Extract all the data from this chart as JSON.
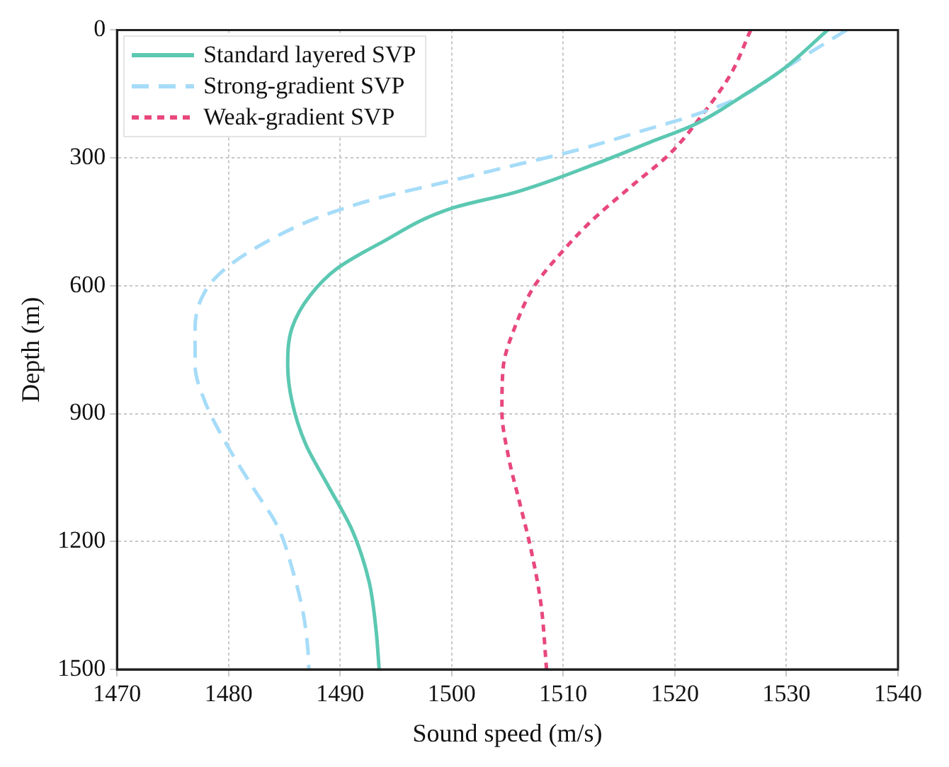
{
  "chart_data": {
    "type": "line",
    "xlabel": "Sound speed (m/s)",
    "ylabel": "Depth (m)",
    "xlim": [
      1470,
      1540
    ],
    "xticks": [
      1470,
      1480,
      1490,
      1500,
      1510,
      1520,
      1530,
      1540
    ],
    "ylim": [
      1500,
      0
    ],
    "yticks": [
      0,
      300,
      600,
      900,
      1200,
      1500
    ],
    "grid": true,
    "legend": "top left",
    "marker": "none",
    "series": [
      {
        "name": "Standard layered SVP",
        "color": "#5cc8b2",
        "line_style": "solid",
        "x": [
          1533.7,
          1529.6,
          1526.6,
          1521.6,
          1517.8,
          1512.8,
          1505.8,
          1499.9,
          1493.6,
          1489.8,
          1487.3,
          1485.7,
          1485.3,
          1485.7,
          1486.9,
          1488.9,
          1491.1,
          1492.6,
          1493.2,
          1493.5
        ],
        "values": [
          0,
          94,
          146,
          224,
          263,
          315,
          380,
          419,
          500,
          558,
          623,
          698,
          786,
          873,
          971,
          1068,
          1175,
          1295,
          1403,
          1500
        ]
      },
      {
        "name": "Strong-gradient SVP",
        "color": "#a6dcf8",
        "line_style": "dashed",
        "x": [
          1535.4,
          1529.6,
          1526.2,
          1521.6,
          1517.4,
          1511.2,
          1505.5,
          1499.9,
          1493.2,
          1488.2,
          1483.6,
          1479.8,
          1477.9,
          1477.0,
          1477.0,
          1477.9,
          1479.8,
          1482.3,
          1484.4,
          1485.8,
          1486.7,
          1487.1,
          1487.2
        ],
        "values": [
          0,
          94,
          153,
          201,
          234,
          282,
          318,
          354,
          396,
          438,
          494,
          558,
          613,
          698,
          786,
          873,
          971,
          1078,
          1165,
          1273,
          1370,
          1451,
          1500
        ]
      },
      {
        "name": "Weak-gradient SVP",
        "color": "#e8487c",
        "line_style": "dotted",
        "x": [
          1526.8,
          1525.0,
          1522.4,
          1519.6,
          1515.8,
          1512.4,
          1509.5,
          1507.4,
          1505.8,
          1504.6,
          1504.5,
          1505.1,
          1506.1,
          1507.1,
          1508.0,
          1508.5
        ],
        "values": [
          0,
          104,
          201,
          289,
          373,
          451,
          532,
          601,
          688,
          795,
          893,
          1003,
          1110,
          1218,
          1347,
          1500
        ]
      }
    ]
  }
}
